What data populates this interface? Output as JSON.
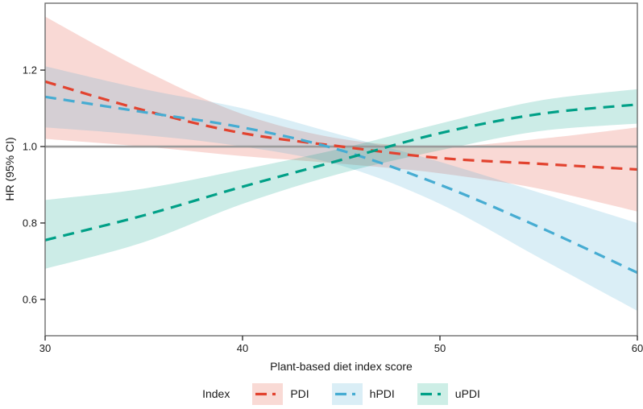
{
  "chart_data": {
    "type": "line",
    "title": "",
    "xlabel": "Plant-based diet index score",
    "ylabel": "HR (95% CI)",
    "xlim": [
      30,
      60
    ],
    "ylim": [
      0.505,
      1.375
    ],
    "x_tick_values": [
      30,
      40,
      50,
      60
    ],
    "x_tick_labels": [
      "30",
      "40",
      "50",
      "60"
    ],
    "y_tick_values": [
      0.6,
      0.8,
      1.0,
      1.2
    ],
    "y_tick_labels": [
      "0.6",
      "0.8",
      "1.0",
      "1.2"
    ],
    "reference_line_y": 1.0,
    "reference_line_color": "#9b9b9b",
    "grid": false,
    "legend_position": "bottom",
    "x": [
      30,
      35,
      40,
      45,
      50,
      55,
      60
    ],
    "series": [
      {
        "name": "PDI",
        "color": "#e2432f",
        "fill": "#f9dad5",
        "values": [
          1.17,
          1.095,
          1.035,
          1.0,
          0.97,
          0.955,
          0.94
        ],
        "ci_upper": [
          1.34,
          1.2,
          1.085,
          1.02,
          1.0,
          1.02,
          1.05
        ],
        "ci_lower": [
          1.02,
          1.0,
          0.975,
          0.955,
          0.93,
          0.89,
          0.83
        ]
      },
      {
        "name": "hPDI",
        "color": "#46acd2",
        "fill": "#daeef6",
        "values": [
          1.13,
          1.09,
          1.05,
          0.99,
          0.9,
          0.79,
          0.67
        ],
        "ci_upper": [
          1.21,
          1.15,
          1.1,
          1.03,
          0.96,
          0.88,
          0.8
        ],
        "ci_lower": [
          1.05,
          1.03,
          1.0,
          0.95,
          0.85,
          0.71,
          0.57
        ]
      },
      {
        "name": "uPDI",
        "color": "#00a087",
        "fill": "#cdeee6",
        "values": [
          0.755,
          0.82,
          0.895,
          0.965,
          1.035,
          1.085,
          1.11
        ],
        "ci_upper": [
          0.86,
          0.89,
          0.94,
          0.995,
          1.06,
          1.12,
          1.15
        ],
        "ci_lower": [
          0.68,
          0.75,
          0.85,
          0.93,
          0.99,
          1.04,
          1.06
        ]
      }
    ]
  },
  "legend": {
    "title": "Index"
  }
}
